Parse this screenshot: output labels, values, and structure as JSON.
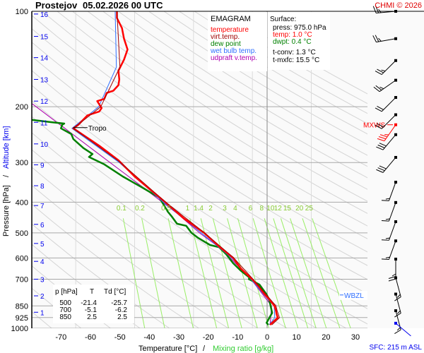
{
  "header": {
    "station": "Prostejov",
    "datetime": "05.02.2026 00 UTC",
    "copyright": "CHMI © 2026"
  },
  "legend": {
    "title": "EMAGRAM",
    "items": [
      {
        "label": "temperature",
        "color": "#ff0000"
      },
      {
        "label": "virt.temp.",
        "color": "#a00000"
      },
      {
        "label": "dew point",
        "color": "#008000"
      },
      {
        "label": "wet bulb temp.",
        "color": "#2f6fff"
      },
      {
        "label": "udpraft v.temp.",
        "color": "#b000b0"
      }
    ]
  },
  "surface": {
    "title": "Surface:",
    "press": "press: 975.0 hPa",
    "temp": "temp: 1.0 °C",
    "dwpt": "dwpt: 0.4 °C",
    "tconv": "t-conv: 1.3 °C",
    "tmxfc": "t-mxfc: 15.5 °C"
  },
  "table": {
    "headers": [
      "p [hPa]",
      "T",
      "Td [°C]"
    ],
    "rows": [
      [
        "500",
        "-21.4",
        "-25.7"
      ],
      [
        "700",
        "-5.1",
        "-6.2"
      ],
      [
        "850",
        "2.5",
        "2.5"
      ]
    ]
  },
  "footer": {
    "sfc": "SFC: 215 m ASL"
  },
  "chart_data": {
    "type": "line",
    "title": "EMAGRAM",
    "xlabel": "Temperature [°C]",
    "xlabel2": "Mixing ratio [g/kg]",
    "ylabel": "Pressure [hPa]",
    "ylabel2": "Altitude [km]",
    "xlim": [
      -80,
      34
    ],
    "ylim": [
      1000,
      100
    ],
    "yscale": "log",
    "x_ticks": [
      "-70",
      "-60",
      "-50",
      "-40",
      "-30",
      "-20",
      "-10",
      "0",
      "10",
      "20",
      "30"
    ],
    "y_ticks": [
      "100",
      "200",
      "300",
      "400",
      "500",
      "600",
      "700",
      "850",
      "925",
      "1000"
    ],
    "altitude_ticks": [
      {
        "km": "1",
        "p": 890
      },
      {
        "km": "2",
        "p": 790
      },
      {
        "km": "3",
        "p": 700
      },
      {
        "km": "4",
        "p": 615
      },
      {
        "km": "5",
        "p": 540
      },
      {
        "km": "6",
        "p": 470
      },
      {
        "km": "7",
        "p": 410
      },
      {
        "km": "8",
        "p": 355
      },
      {
        "km": "9",
        "p": 305
      },
      {
        "km": "10",
        "p": 262
      },
      {
        "km": "11",
        "p": 224
      },
      {
        "km": "12",
        "p": 192
      },
      {
        "km": "13",
        "p": 164
      },
      {
        "km": "14",
        "p": 140
      },
      {
        "km": "15",
        "p": 120
      },
      {
        "km": "16",
        "p": 102
      }
    ],
    "mixing_ratio_lines": [
      "0.1",
      "0.2",
      "0.5",
      "1",
      "1.4",
      "2",
      "3",
      "4",
      "6",
      "8",
      "10",
      "12",
      "15",
      "20",
      "25"
    ],
    "series": [
      {
        "name": "temperature",
        "color": "#ff0000",
        "points": [
          [
            975,
            1.0
          ],
          [
            964,
            1.5
          ],
          [
            926,
            3.6
          ],
          [
            900,
            3.2
          ],
          [
            880,
            3.0
          ],
          [
            850,
            2.5
          ],
          [
            806,
            0.5
          ],
          [
            785,
            -0.7
          ],
          [
            735,
            -3.0
          ],
          [
            700,
            -5.1
          ],
          [
            681,
            -6.5
          ],
          [
            647,
            -9.0
          ],
          [
            600,
            -11.5
          ],
          [
            555,
            -16.0
          ],
          [
            500,
            -21.4
          ],
          [
            451,
            -28.2
          ],
          [
            400,
            -34.6
          ],
          [
            332,
            -45.0
          ],
          [
            295,
            -50.5
          ],
          [
            266,
            -56.9
          ],
          [
            234,
            -65.8
          ],
          [
            228,
            -64.1
          ],
          [
            220,
            -62.5
          ],
          [
            213,
            -61.0
          ],
          [
            207,
            -57.0
          ],
          [
            202,
            -56.2
          ],
          [
            192,
            -57.7
          ],
          [
            189,
            -55.3
          ],
          [
            181,
            -54.5
          ],
          [
            178,
            -52.2
          ],
          [
            171,
            -50.5
          ],
          [
            164,
            -50.2
          ],
          [
            154,
            -50.5
          ],
          [
            142,
            -48.6
          ],
          [
            132,
            -47.4
          ],
          [
            122,
            -48.6
          ],
          [
            113,
            -49.3
          ],
          [
            105,
            -51.0
          ],
          [
            100,
            -51.0
          ]
        ]
      },
      {
        "name": "virt.temp.",
        "color": "#a00000",
        "points": [
          [
            975,
            1.6
          ],
          [
            926,
            4.2
          ],
          [
            880,
            3.4
          ],
          [
            850,
            3.0
          ],
          [
            785,
            -0.2
          ],
          [
            700,
            -4.8
          ],
          [
            600,
            -11.3
          ],
          [
            500,
            -21.3
          ],
          [
            400,
            -34.5
          ],
          [
            300,
            -49.8
          ],
          [
            234,
            -65.8
          ],
          [
            200,
            -56.5
          ],
          [
            150,
            -50.0
          ],
          [
            100,
            -51.0
          ]
        ]
      },
      {
        "name": "dew point",
        "color": "#008000",
        "points": [
          [
            975,
            0.4
          ],
          [
            961,
            -0.2
          ],
          [
            894,
            1.7
          ],
          [
            835,
            1.0
          ],
          [
            806,
            0.5
          ],
          [
            782,
            -0.2
          ],
          [
            728,
            -2.6
          ],
          [
            709,
            -5.0
          ],
          [
            700,
            -6.2
          ],
          [
            692,
            -6.0
          ],
          [
            657,
            -9.0
          ],
          [
            624,
            -11.5
          ],
          [
            584,
            -13.9
          ],
          [
            555,
            -16.3
          ],
          [
            546,
            -19.4
          ],
          [
            519,
            -23.4
          ],
          [
            500,
            -25.7
          ],
          [
            475,
            -27.5
          ],
          [
            468,
            -30.6
          ],
          [
            445,
            -32.3
          ],
          [
            429,
            -33.7
          ],
          [
            387,
            -36.6
          ],
          [
            359,
            -42.6
          ],
          [
            332,
            -49.0
          ],
          [
            304,
            -55.3
          ],
          [
            288,
            -60.5
          ],
          [
            282,
            -59.3
          ],
          [
            270,
            -62.4
          ],
          [
            253,
            -65.8
          ],
          [
            244,
            -66.5
          ],
          [
            234,
            -70.0
          ],
          [
            228,
            -69.6
          ],
          [
            226,
            -68.9
          ],
          [
            224,
            -72.9
          ],
          [
            220,
            -80.0
          ]
        ]
      },
      {
        "name": "wet bulb temp.",
        "color": "#2f6fff",
        "points": [
          [
            975,
            0.7
          ],
          [
            926,
            2.6
          ],
          [
            850,
            2.4
          ],
          [
            785,
            -1.0
          ],
          [
            700,
            -5.5
          ],
          [
            600,
            -12.0
          ],
          [
            500,
            -22.4
          ],
          [
            400,
            -35.3
          ],
          [
            300,
            -50.2
          ],
          [
            234,
            -66.3
          ],
          [
            200,
            -57.2
          ],
          [
            150,
            -51.2
          ],
          [
            100,
            -51.6
          ]
        ]
      },
      {
        "name": "udpraft v.temp.",
        "color": "#b000b0",
        "points": [
          [
            975,
            1.0
          ],
          [
            850,
            1.5
          ],
          [
            700,
            -5.5
          ],
          [
            600,
            -12.5
          ],
          [
            555,
            -16.3
          ],
          [
            500,
            -23.0
          ],
          [
            434,
            -30.6
          ],
          [
            327,
            -48.0
          ],
          [
            196,
            -79.7
          ]
        ]
      }
    ],
    "annotations": [
      {
        "text": "Tropo",
        "p": 234,
        "t": -65.8
      },
      {
        "text": "WBZL",
        "p": 785
      },
      {
        "text": "MXWS",
        "p": 228
      }
    ],
    "winds": [
      {
        "p": 100,
        "dir": 265,
        "kt": 25
      },
      {
        "p": 122,
        "dir": 260,
        "kt": 25
      },
      {
        "p": 143,
        "dir": 225,
        "kt": 25
      },
      {
        "p": 165,
        "dir": 235,
        "kt": 25
      },
      {
        "p": 187,
        "dir": 225,
        "kt": 20
      },
      {
        "p": 212,
        "dir": 225,
        "kt": 20
      },
      {
        "p": 228,
        "dir": 215,
        "kt": 35,
        "max": true
      },
      {
        "p": 245,
        "dir": 220,
        "kt": 30
      },
      {
        "p": 289,
        "dir": 220,
        "kt": 30
      },
      {
        "p": 346,
        "dir": 200,
        "kt": 15
      },
      {
        "p": 401,
        "dir": 200,
        "kt": 15
      },
      {
        "p": 461,
        "dir": 200,
        "kt": 15
      },
      {
        "p": 530,
        "dir": 200,
        "kt": 15
      },
      {
        "p": 605,
        "dir": 180,
        "kt": 25
      },
      {
        "p": 693,
        "dir": 165,
        "kt": 15
      },
      {
        "p": 780,
        "dir": 165,
        "kt": 15
      },
      {
        "p": 880,
        "dir": 165,
        "kt": 15
      },
      {
        "p": 964,
        "dir": 130,
        "kt": 0,
        "surface": true
      }
    ]
  }
}
